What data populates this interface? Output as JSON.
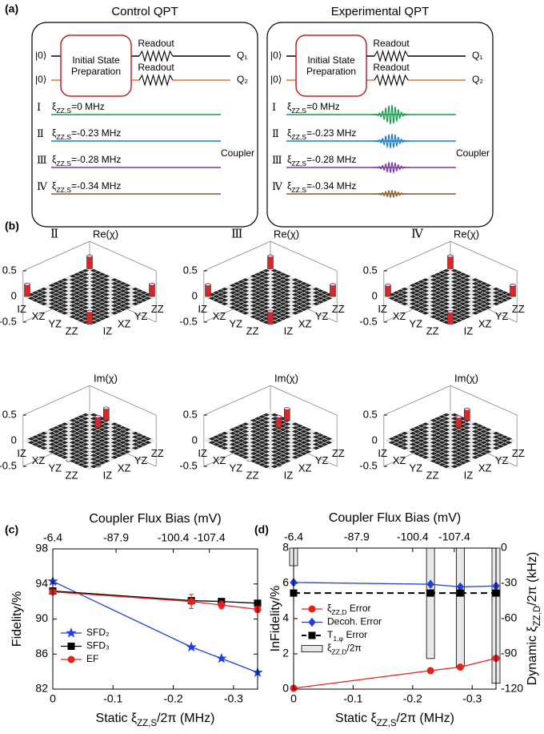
{
  "panel_labels": [
    "(a)",
    "(b)",
    "(c)",
    "(d)"
  ],
  "circuits": {
    "titles": [
      "Control QPT",
      "Experimental QPT"
    ],
    "ket": "|0⟩",
    "init_prep": [
      "Initial State",
      "Preparation"
    ],
    "readout": "Readout",
    "qubits": [
      "Q₁",
      "Q₂"
    ],
    "coupler": "Coupler",
    "cases": [
      {
        "numeral": "Ⅰ",
        "label": [
          "ξ",
          "ZZ,S",
          "=0 MHz"
        ],
        "color": "#1a9a50"
      },
      {
        "numeral": "Ⅱ",
        "label": [
          "ξ",
          "ZZ,S",
          "=-0.23 MHz"
        ],
        "color": "#1a7cc0"
      },
      {
        "numeral": "Ⅲ",
        "label": [
          "ξ",
          "ZZ,S",
          "=-0.28 MHz"
        ],
        "color": "#7a3aa0"
      },
      {
        "numeral": "Ⅳ",
        "label": [
          "ξ",
          "ZZ,S",
          "=-0.34 MHz"
        ],
        "color": "#8b5a2b"
      }
    ]
  },
  "chi_plots": {
    "axis_labels": [
      "IZ",
      "XZ",
      "YZ",
      "ZZ"
    ],
    "zlim": [
      -0.5,
      0.5
    ],
    "zticks": [
      0.5,
      0,
      -0.5
    ],
    "plots": [
      {
        "numeral": "Ⅱ",
        "title": "Re(χ)",
        "bars": [
          {
            "row": 0,
            "col": 0,
            "value": 0.25
          },
          {
            "row": 0,
            "col": 15,
            "value": 0.24
          },
          {
            "row": 15,
            "col": 0,
            "value": 0.24
          },
          {
            "row": 15,
            "col": 15,
            "value": 0.25
          }
        ]
      },
      {
        "numeral": "Ⅲ",
        "title": "Re(χ)",
        "bars": [
          {
            "row": 0,
            "col": 0,
            "value": 0.25
          },
          {
            "row": 0,
            "col": 15,
            "value": 0.23
          },
          {
            "row": 15,
            "col": 0,
            "value": 0.23
          },
          {
            "row": 15,
            "col": 15,
            "value": 0.25
          }
        ]
      },
      {
        "numeral": "Ⅳ",
        "title": "Re(χ)",
        "bars": [
          {
            "row": 0,
            "col": 0,
            "value": 0.25
          },
          {
            "row": 0,
            "col": 15,
            "value": 0.22
          },
          {
            "row": 15,
            "col": 0,
            "value": 0.22
          },
          {
            "row": 15,
            "col": 15,
            "value": 0.24
          }
        ]
      },
      {
        "title": "Im(χ)",
        "bars": [
          {
            "row": 0,
            "col": 4,
            "value": 0.24
          },
          {
            "row": 3,
            "col": 5,
            "value": 0.22
          },
          {
            "row": 12,
            "col": 7,
            "value": -0.24
          },
          {
            "row": 10,
            "col": 12,
            "value": -0.24
          }
        ]
      },
      {
        "title": "Im(χ)",
        "bars": [
          {
            "row": 0,
            "col": 4,
            "value": 0.23
          },
          {
            "row": 3,
            "col": 5,
            "value": 0.22
          },
          {
            "row": 12,
            "col": 7,
            "value": -0.23
          },
          {
            "row": 10,
            "col": 12,
            "value": -0.23
          }
        ]
      },
      {
        "title": "Im(χ)",
        "bars": [
          {
            "row": 0,
            "col": 4,
            "value": 0.22
          },
          {
            "row": 3,
            "col": 5,
            "value": 0.21
          },
          {
            "row": 12,
            "col": 7,
            "value": -0.22
          },
          {
            "row": 10,
            "col": 12,
            "value": -0.22
          }
        ]
      }
    ]
  },
  "chart_data": [
    {
      "type": "line",
      "x_label": [
        "Static ξ",
        "ZZ,S",
        "/2π (MHz)"
      ],
      "x2_label": "Coupler Flux Bias (mV)",
      "y_label": "Fidelity/%",
      "x": [
        0,
        -0.23,
        -0.28,
        -0.34
      ],
      "xlim": [
        0,
        -0.34
      ],
      "xticks": [
        0,
        -0.1,
        -0.2,
        -0.3
      ],
      "x2ticks": [
        -6.4,
        -87.9,
        -100.4,
        -107.4
      ],
      "x2tick_at": [
        0,
        -0.105,
        -0.2,
        -0.26
      ],
      "ylim": [
        82,
        98
      ],
      "yticks": [
        82,
        86,
        90,
        94,
        98
      ],
      "legend": "lower left",
      "series": [
        {
          "name": "SFD₂",
          "color": "#1f3fe0",
          "marker": "star",
          "values": [
            94.3,
            86.8,
            85.5,
            83.9
          ]
        },
        {
          "name": "SFD₃",
          "color": "#000000",
          "marker": "square",
          "values": [
            93.2,
            92.1,
            92.0,
            91.8
          ]
        },
        {
          "name": "EF",
          "color": "#e8201c",
          "marker": "circle",
          "values": [
            93.1,
            92.0,
            91.6,
            91.1
          ],
          "errors": [
            0.15,
            0.8,
            0.45,
            0.35
          ]
        }
      ]
    },
    {
      "type": "line",
      "x_label": [
        "Static ξ",
        "ZZ,S",
        "/2π (MHz)"
      ],
      "x2_label": "Coupler Flux Bias (mV)",
      "y_label": "InFidelity/%",
      "y2_label": [
        "Dynamic ξ",
        "ZZ,D",
        "/2π (kHz)"
      ],
      "x": [
        0,
        -0.23,
        -0.28,
        -0.34
      ],
      "xlim": [
        0,
        -0.34
      ],
      "xticks": [
        0,
        -0.1,
        -0.2,
        -0.3
      ],
      "x2ticks": [
        -6.4,
        -87.9,
        -100.4,
        -107.4
      ],
      "x2tick_at": [
        0,
        -0.106,
        -0.2,
        -0.27
      ],
      "ylim": [
        0,
        8
      ],
      "yticks": [
        0,
        2,
        4,
        6,
        8
      ],
      "y2lim": [
        -120,
        0
      ],
      "y2ticks": [
        0,
        -30,
        -60,
        -90,
        -120
      ],
      "legend": "center left",
      "series": [
        {
          "name": [
            "ξ",
            "ZZ,D",
            " Error"
          ],
          "color": "#e8201c",
          "marker": "circle",
          "values": [
            0.05,
            1.05,
            1.25,
            1.75
          ]
        },
        {
          "name": "Decoh. Error",
          "color": "#1f3fe0",
          "marker": "diamond",
          "values": [
            6.05,
            5.95,
            5.8,
            5.85
          ]
        },
        {
          "name": [
            "T",
            "1,φ",
            " Error"
          ],
          "color": "#000000",
          "marker": "square",
          "dash": true,
          "values": [
            5.45,
            5.45,
            5.45,
            5.45
          ]
        },
        {
          "name": [
            "ξ",
            "ZZ,D",
            "/2π"
          ],
          "type": "bar",
          "axis": "y2",
          "color": "#e8e8e8",
          "values": [
            -15,
            -94,
            -101,
            -115
          ]
        }
      ]
    }
  ]
}
